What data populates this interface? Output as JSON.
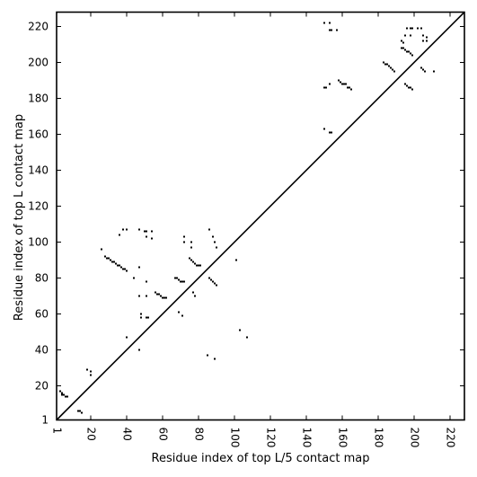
{
  "chart_data": {
    "type": "scatter",
    "xlabel": "Residue index of top L/5 contact map",
    "ylabel": "Residue index of top L contact map",
    "xlim": [
      1,
      228
    ],
    "ylim": [
      1,
      228
    ],
    "x_ticks": [
      1,
      20,
      40,
      60,
      80,
      100,
      120,
      140,
      160,
      180,
      200,
      220
    ],
    "y_ticks": [
      1,
      20,
      40,
      60,
      80,
      100,
      120,
      140,
      160,
      180,
      200,
      220
    ],
    "diagonal": true,
    "grid": false,
    "colors": {
      "marker": "#000000",
      "diagonal": "#000000"
    },
    "series": [
      {
        "region": "lower-right (top L/5 map)",
        "points": [
          [
            3,
            17
          ],
          [
            4,
            16
          ],
          [
            5,
            15
          ],
          [
            6,
            14
          ],
          [
            7,
            14
          ],
          [
            4,
            15
          ],
          [
            13,
            6
          ],
          [
            14,
            6
          ],
          [
            15,
            5
          ],
          [
            28,
            92
          ],
          [
            29,
            91
          ],
          [
            30,
            91
          ],
          [
            31,
            90
          ],
          [
            32,
            89
          ],
          [
            33,
            89
          ],
          [
            34,
            88
          ],
          [
            35,
            87
          ],
          [
            36,
            87
          ],
          [
            37,
            86
          ],
          [
            38,
            85
          ],
          [
            39,
            85
          ],
          [
            40,
            84
          ],
          [
            56,
            72
          ],
          [
            57,
            71
          ],
          [
            58,
            71
          ],
          [
            59,
            70
          ],
          [
            60,
            69
          ],
          [
            61,
            69
          ],
          [
            62,
            69
          ],
          [
            67,
            80
          ],
          [
            68,
            80
          ],
          [
            69,
            79
          ],
          [
            70,
            78
          ],
          [
            71,
            78
          ],
          [
            72,
            78
          ],
          [
            75,
            91
          ],
          [
            76,
            90
          ],
          [
            77,
            89
          ],
          [
            78,
            88
          ],
          [
            79,
            87
          ],
          [
            80,
            87
          ],
          [
            81,
            87
          ],
          [
            86,
            80
          ],
          [
            87,
            79
          ],
          [
            88,
            78
          ],
          [
            89,
            77
          ],
          [
            90,
            76
          ],
          [
            150,
            186
          ],
          [
            151,
            186
          ],
          [
            153,
            188
          ],
          [
            158,
            190
          ],
          [
            159,
            189
          ],
          [
            160,
            188
          ],
          [
            161,
            188
          ],
          [
            162,
            188
          ],
          [
            163,
            186
          ],
          [
            164,
            186
          ],
          [
            165,
            185
          ],
          [
            183,
            200
          ],
          [
            184,
            199
          ],
          [
            185,
            199
          ],
          [
            186,
            198
          ],
          [
            187,
            197
          ],
          [
            188,
            196
          ],
          [
            189,
            195
          ],
          [
            194,
            208
          ],
          [
            195,
            207
          ],
          [
            196,
            206
          ],
          [
            197,
            206
          ],
          [
            198,
            205
          ],
          [
            199,
            204
          ],
          [
            195,
            188
          ],
          [
            196,
            187
          ],
          [
            197,
            186
          ],
          [
            198,
            186
          ],
          [
            199,
            185
          ],
          [
            204,
            197
          ],
          [
            205,
            196
          ],
          [
            206,
            195
          ],
          [
            211,
            195
          ]
        ]
      },
      {
        "region": "upper-left (top L map)",
        "points": [
          [
            18,
            29
          ],
          [
            20,
            28
          ],
          [
            20,
            26
          ],
          [
            26,
            96
          ],
          [
            36,
            104
          ],
          [
            38,
            107
          ],
          [
            40,
            107
          ],
          [
            40,
            47
          ],
          [
            44,
            80
          ],
          [
            47,
            86
          ],
          [
            47,
            70
          ],
          [
            47,
            40
          ],
          [
            48,
            60
          ],
          [
            48,
            58
          ],
          [
            47,
            107
          ],
          [
            50,
            106
          ],
          [
            51,
            106
          ],
          [
            51,
            103
          ],
          [
            51,
            78
          ],
          [
            51,
            70
          ],
          [
            51,
            58
          ],
          [
            52,
            58
          ],
          [
            54,
            102
          ],
          [
            54,
            106
          ],
          [
            69,
            61
          ],
          [
            71,
            59
          ],
          [
            72,
            103
          ],
          [
            72,
            100
          ],
          [
            76,
            100
          ],
          [
            76,
            97
          ],
          [
            77,
            72
          ],
          [
            78,
            70
          ],
          [
            86,
            107
          ],
          [
            85,
            37
          ],
          [
            88,
            103
          ],
          [
            89,
            100
          ],
          [
            89,
            35
          ],
          [
            90,
            97
          ],
          [
            101,
            90
          ],
          [
            103,
            51
          ],
          [
            107,
            47
          ],
          [
            150,
            163
          ],
          [
            153,
            161
          ],
          [
            154,
            161
          ],
          [
            150,
            222
          ],
          [
            153,
            222
          ],
          [
            153,
            218
          ],
          [
            154,
            218
          ],
          [
            157,
            218
          ],
          [
            193,
            212
          ],
          [
            193,
            208
          ],
          [
            194,
            211
          ],
          [
            195,
            215
          ],
          [
            196,
            219
          ],
          [
            198,
            219
          ],
          [
            198,
            215
          ],
          [
            199,
            219
          ],
          [
            202,
            219
          ],
          [
            204,
            219
          ],
          [
            205,
            215
          ],
          [
            205,
            212
          ],
          [
            207,
            214
          ],
          [
            207,
            212
          ]
        ]
      }
    ]
  }
}
